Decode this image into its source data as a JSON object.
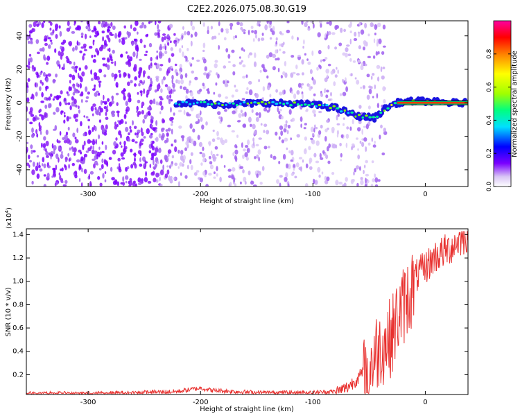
{
  "title": "C2E2.2026.075.08.30.G19",
  "chart_data": [
    {
      "type": "heatmap",
      "name": "spectrogram",
      "xlabel": "Height of straight line (km)",
      "ylabel": "Frequency (Hz)",
      "xlim": [
        -355,
        38
      ],
      "ylim": [
        -50,
        49
      ],
      "x_ticks": [
        -300,
        -200,
        -100,
        0
      ],
      "y_ticks": [
        -40,
        -20,
        0,
        20,
        40
      ],
      "colorbar": {
        "label": "Normalized spectral amplitude",
        "range": [
          0,
          1
        ],
        "ticks": [
          0,
          0.2,
          0.4,
          0.6,
          0.8
        ],
        "tick_labels": [
          "0.0",
          "0.2",
          "0.4",
          "0.6",
          "0.8"
        ],
        "colors": [
          "#ffffff",
          "#d8c4f5",
          "#7a00ff",
          "#0000ff",
          "#00e0ff",
          "#00ff80",
          "#a0ff00",
          "#ffff00",
          "#ff8000",
          "#ff0000",
          "#ff00a0"
        ]
      },
      "signal_track": {
        "x": [
          -220,
          -180,
          -140,
          -100,
          -80,
          -60,
          -45,
          -35,
          -25,
          -10,
          0,
          20,
          38
        ],
        "frequency": [
          0,
          -1,
          0,
          -1,
          -3,
          -8,
          -9,
          -3,
          0,
          1,
          1,
          0,
          0
        ]
      }
    },
    {
      "type": "line",
      "name": "snr",
      "xlabel": "Height of straight line (km)",
      "ylabel": "SNR (10 * v/v)",
      "scale_label": "(x10",
      "scale_exponent": "4",
      "xlim": [
        -355,
        38
      ],
      "ylim": [
        0.03,
        1.45
      ],
      "x_ticks": [
        -300,
        -200,
        -100,
        0
      ],
      "y_ticks": [
        0.2,
        0.4,
        0.6,
        0.8,
        1.0,
        1.2,
        1.4
      ],
      "y_tick_labels": [
        "0.2",
        "0.4",
        "0.6",
        "0.8",
        "1.0",
        "1.2",
        "1.4"
      ],
      "series": [
        {
          "name": "SNR",
          "color": "#e8302e",
          "x": [
            -355,
            -300,
            -250,
            -220,
            -200,
            -190,
            -170,
            -150,
            -120,
            -100,
            -80,
            -70,
            -60,
            -50,
            -45,
            -40,
            -35,
            -30,
            -25,
            -20,
            -15,
            -10,
            -5,
            0,
            10,
            20,
            30,
            38
          ],
          "y": [
            0.04,
            0.04,
            0.05,
            0.06,
            0.09,
            0.07,
            0.06,
            0.05,
            0.05,
            0.05,
            0.06,
            0.1,
            0.18,
            0.3,
            0.45,
            0.5,
            0.55,
            0.6,
            0.75,
            0.85,
            0.95,
            1.05,
            1.1,
            1.15,
            1.25,
            1.3,
            1.38,
            1.42
          ]
        }
      ]
    }
  ]
}
